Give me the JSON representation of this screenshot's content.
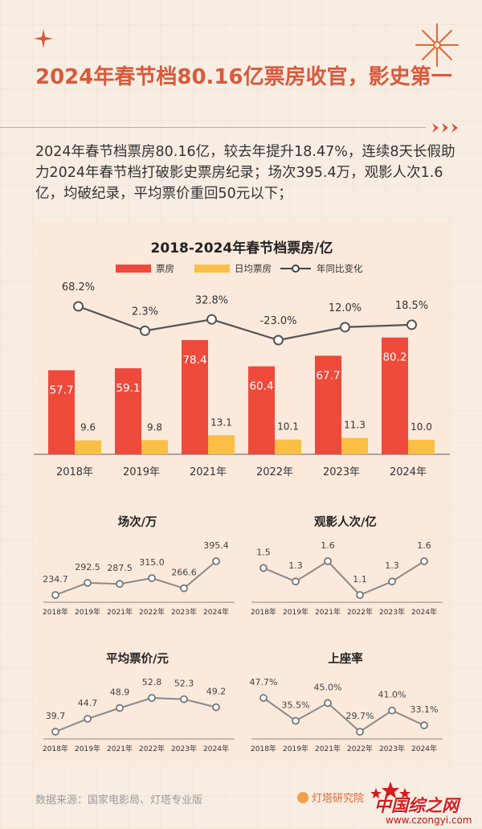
{
  "title": "2024年春节档80.16亿票房收官，影史第一",
  "summary": "2024年春节档票房80.16亿，较去年提升18.47%，连续8天长假助力2024年春节档打破影史票房纪录；场次395.4万，观影人次1.6亿，均破纪录，平均票价重回50元以下；",
  "source": "数据来源：国家电影局、灯塔专业版",
  "brand": "灯塔研究院",
  "watermark": {
    "text": "中国综之网",
    "url": "www.czongyi.com"
  },
  "colors": {
    "box_office": "#ee4a3c",
    "daily": "#fcbf45",
    "line": "#888888",
    "accent": "#d85a3c"
  },
  "chart_data": [
    {
      "type": "bar",
      "title": "2018-2024年春节档票房/亿",
      "categories": [
        "2018年",
        "2019年",
        "2021年",
        "2022年",
        "2023年",
        "2024年"
      ],
      "series": [
        {
          "name": "票房",
          "values": [
            57.7,
            59.1,
            78.4,
            60.4,
            67.7,
            80.2
          ]
        },
        {
          "name": "日均票房",
          "values": [
            9.6,
            9.8,
            13.1,
            10.1,
            11.3,
            10.0
          ]
        }
      ],
      "line_series": {
        "name": "年同比变化",
        "values": [
          68.2,
          2.3,
          32.8,
          -23.0,
          12.0,
          18.5
        ],
        "labels": [
          "68.2%",
          "2.3%",
          "32.8%",
          "-23.0%",
          "12.0%",
          "18.5%"
        ]
      },
      "ylim": [
        0,
        90
      ],
      "legend": "top"
    },
    {
      "type": "line",
      "title": "场次/万",
      "categories": [
        "2018年",
        "2019年",
        "2021年",
        "2022年",
        "2023年",
        "2024年"
      ],
      "values": [
        234.7,
        292.5,
        287.5,
        315.0,
        266.6,
        395.4
      ],
      "labels": [
        "234.7",
        "292.5",
        "287.5",
        "315.0",
        "266.6",
        "395.4"
      ]
    },
    {
      "type": "line",
      "title": "观影人次/亿",
      "categories": [
        "2018年",
        "2019年",
        "2021年",
        "2022年",
        "2023年",
        "2024年"
      ],
      "values": [
        1.5,
        1.3,
        1.6,
        1.1,
        1.3,
        1.6
      ],
      "labels": [
        "1.5",
        "1.3",
        "1.6",
        "1.1",
        "1.3",
        "1.6"
      ]
    },
    {
      "type": "line",
      "title": "平均票价/元",
      "categories": [
        "2018年",
        "2019年",
        "2021年",
        "2022年",
        "2023年",
        "2024年"
      ],
      "values": [
        39.7,
        44.7,
        48.9,
        52.8,
        52.3,
        49.2
      ],
      "labels": [
        "39.7",
        "44.7",
        "48.9",
        "52.8",
        "52.3",
        "49.2"
      ]
    },
    {
      "type": "line",
      "title": "上座率",
      "categories": [
        "2018年",
        "2019年",
        "2021年",
        "2022年",
        "2023年",
        "2024年"
      ],
      "values": [
        47.7,
        35.5,
        45.0,
        29.7,
        41.0,
        33.1
      ],
      "labels": [
        "47.7%",
        "35.5%",
        "45.0%",
        "29.7%",
        "41.0%",
        "33.1%"
      ]
    }
  ]
}
